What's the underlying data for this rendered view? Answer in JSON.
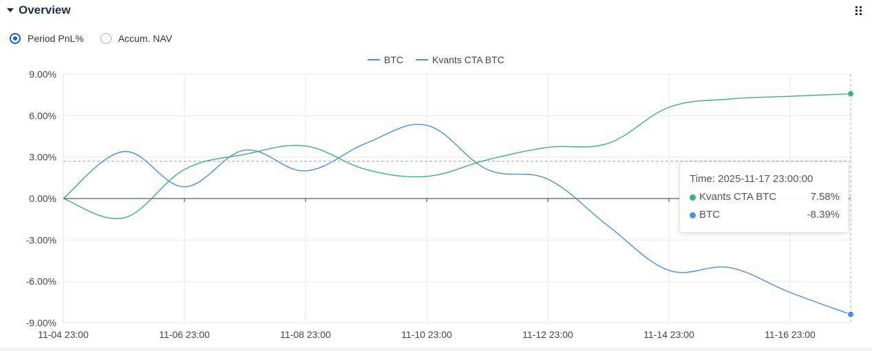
{
  "panel": {
    "title": "Overview"
  },
  "view_options": [
    {
      "label": "Period PnL%",
      "selected": true
    },
    {
      "label": "Accum. NAV",
      "selected": false
    }
  ],
  "chart_data": {
    "type": "line",
    "title": "",
    "xlabel": "",
    "ylabel": "",
    "x_ticks": [
      "11-04 23:00",
      "11-06 23:00",
      "11-08 23:00",
      "11-10 23:00",
      "11-12 23:00",
      "11-14 23:00",
      "11-16 23:00"
    ],
    "y_ticks": [
      "9.00%",
      "6.00%",
      "3.00%",
      "0.00%",
      "-3.00%",
      "-6.00%",
      "-9.00%"
    ],
    "ylim": [
      -9,
      9
    ],
    "xlim": [
      "2025-11-04 23:00",
      "2025-11-17 23:00"
    ],
    "legend_position": "top-center",
    "grid": true,
    "series": [
      {
        "name": "BTC",
        "color": "#4a8fdc",
        "points": [
          [
            "2025-11-04 23:00",
            0.0
          ],
          [
            "2025-11-05 23:00",
            3.4
          ],
          [
            "2025-11-06 23:00",
            0.85
          ],
          [
            "2025-11-07 23:00",
            3.5
          ],
          [
            "2025-11-08 23:00",
            2.0
          ],
          [
            "2025-11-09 23:00",
            4.0
          ],
          [
            "2025-11-10 23:00",
            5.3
          ],
          [
            "2025-11-11 23:00",
            2.1
          ],
          [
            "2025-11-12 23:00",
            1.4
          ],
          [
            "2025-11-13 23:00",
            -2.0
          ],
          [
            "2025-11-14 23:00",
            -5.2
          ],
          [
            "2025-11-15 23:00",
            -5.0
          ],
          [
            "2025-11-16 23:00",
            -6.8
          ],
          [
            "2025-11-17 23:00",
            -8.39
          ]
        ]
      },
      {
        "name": "Kvants CTA BTC",
        "color": "#3bb077",
        "points": [
          [
            "2025-11-04 23:00",
            0.0
          ],
          [
            "2025-11-05 23:00",
            -1.4
          ],
          [
            "2025-11-06 23:00",
            2.1
          ],
          [
            "2025-11-07 23:00",
            3.2
          ],
          [
            "2025-11-08 23:00",
            3.8
          ],
          [
            "2025-11-09 23:00",
            2.1
          ],
          [
            "2025-11-10 23:00",
            1.6
          ],
          [
            "2025-11-11 23:00",
            2.8
          ],
          [
            "2025-11-12 23:00",
            3.7
          ],
          [
            "2025-11-13 23:00",
            4.0
          ],
          [
            "2025-11-14 23:00",
            6.6
          ],
          [
            "2025-11-15 23:00",
            7.2
          ],
          [
            "2025-11-16 23:00",
            7.4
          ],
          [
            "2025-11-17 23:00",
            7.58
          ]
        ]
      }
    ],
    "crosshair": {
      "x": "2025-11-17 23:00",
      "y": 2.7
    }
  },
  "tooltip": {
    "time": "Time: 2025-11-17 23:00:00",
    "rows": [
      {
        "name": "Kvants CTA BTC",
        "value": "7.58%",
        "color": "#3bb077"
      },
      {
        "name": "BTC",
        "value": "-8.39%",
        "color": "#4a8fdc"
      }
    ]
  }
}
